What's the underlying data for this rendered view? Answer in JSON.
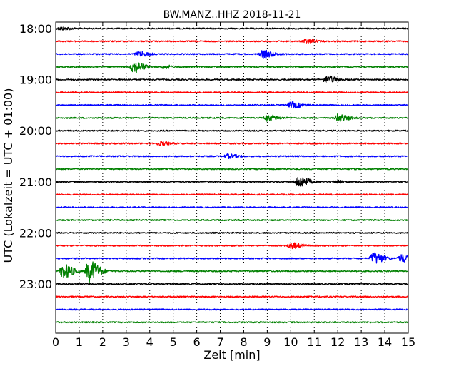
{
  "chart_data": {
    "type": "line",
    "title": "BW.MANZ..HHZ 2018-11-21",
    "xlabel": "Zeit  [min]",
    "ylabel": "UTC (Lokalzeit = UTC + 01:00)",
    "xlim": [
      0,
      15
    ],
    "x_ticks": [
      "0",
      "1",
      "2",
      "3",
      "4",
      "5",
      "6",
      "7",
      "8",
      "9",
      "10",
      "11",
      "12",
      "13",
      "14",
      "15"
    ],
    "y_tick_labels": [
      "18:00",
      "19:00",
      "20:00",
      "21:00",
      "22:00",
      "23:00"
    ],
    "grid": "vertical dotted",
    "colors": [
      "#000000",
      "#ff0000",
      "#0000ff",
      "#008000"
    ],
    "series": [
      {
        "start": "18:00",
        "events": [
          [
            0.2,
            2
          ]
        ]
      },
      {
        "start": "18:15",
        "events": [
          [
            10.6,
            2.5
          ]
        ]
      },
      {
        "start": "18:30",
        "events": [
          [
            3.5,
            3
          ],
          [
            8.8,
            5
          ]
        ]
      },
      {
        "start": "18:45",
        "events": [
          [
            3.3,
            8
          ],
          [
            4.6,
            2
          ]
        ]
      },
      {
        "start": "19:00",
        "events": [
          [
            11.5,
            5
          ]
        ]
      },
      {
        "start": "19:15",
        "events": []
      },
      {
        "start": "19:30",
        "events": [
          [
            10.0,
            4
          ]
        ]
      },
      {
        "start": "19:45",
        "events": [
          [
            9.0,
            4
          ],
          [
            12.0,
            5
          ]
        ]
      },
      {
        "start": "20:00",
        "events": []
      },
      {
        "start": "20:15",
        "events": [
          [
            4.4,
            2.5
          ]
        ]
      },
      {
        "start": "20:30",
        "events": [
          [
            7.3,
            2.5
          ]
        ]
      },
      {
        "start": "20:45",
        "events": []
      },
      {
        "start": "21:00",
        "events": [
          [
            10.3,
            8
          ],
          [
            11.9,
            1.5
          ]
        ]
      },
      {
        "start": "21:15",
        "events": []
      },
      {
        "start": "21:30",
        "events": []
      },
      {
        "start": "21:45",
        "events": []
      },
      {
        "start": "22:00",
        "events": []
      },
      {
        "start": "22:15",
        "events": [
          [
            10.0,
            4
          ]
        ]
      },
      {
        "start": "22:30",
        "events": [
          [
            13.5,
            8
          ],
          [
            14.7,
            5
          ]
        ]
      },
      {
        "start": "22:45",
        "events": [
          [
            0.3,
            10
          ],
          [
            1.4,
            15
          ]
        ]
      },
      {
        "start": "23:00",
        "events": []
      },
      {
        "start": "23:15",
        "events": []
      },
      {
        "start": "23:30",
        "events": []
      },
      {
        "start": "23:45",
        "events": []
      }
    ]
  }
}
